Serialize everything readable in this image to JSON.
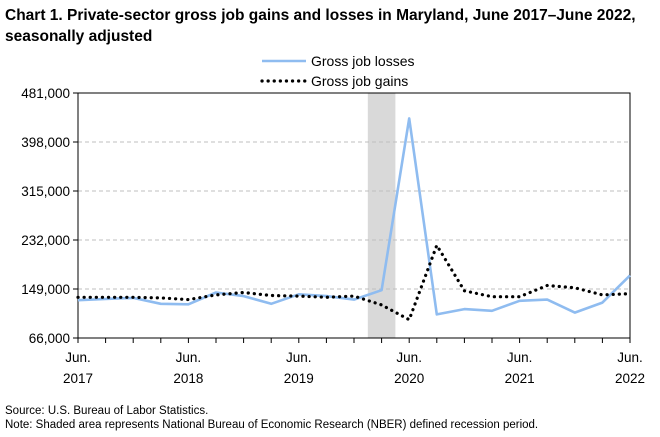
{
  "chart_data": {
    "type": "line",
    "title": "Chart 1. Private-sector gross job gains and losses in Maryland, June 2017–June 2022, seasonally adjusted",
    "xlabel": "",
    "ylabel": "",
    "ylim": [
      66000,
      481000
    ],
    "yticks": [
      "481,000",
      "398,000",
      "315,000",
      "232,000",
      "149,000",
      "66,000"
    ],
    "ytick_values": [
      481000,
      398000,
      315000,
      232000,
      149000,
      66000
    ],
    "xticks": [
      {
        "index": 0,
        "month": "Jun.",
        "year": "2017"
      },
      {
        "index": 4,
        "month": "Jun.",
        "year": "2018"
      },
      {
        "index": 8,
        "month": "Jun.",
        "year": "2019"
      },
      {
        "index": 12,
        "month": "Jun.",
        "year": "2020"
      },
      {
        "index": 16,
        "month": "Jun.",
        "year": "2021"
      },
      {
        "index": 20,
        "month": "Jun.",
        "year": "2022"
      }
    ],
    "categories": [
      "Jun 2017",
      "Sep 2017",
      "Dec 2017",
      "Mar 2018",
      "Jun 2018",
      "Sep 2018",
      "Dec 2018",
      "Mar 2019",
      "Jun 2019",
      "Sep 2019",
      "Dec 2019",
      "Mar 2020",
      "Jun 2020",
      "Sep 2020",
      "Dec 2020",
      "Mar 2021",
      "Jun 2021",
      "Sep 2021",
      "Dec 2021",
      "Mar 2022",
      "Jun 2022"
    ],
    "recession": {
      "start_index": 10.5,
      "end_index": 11.5
    },
    "legend": "top-right",
    "grid": true,
    "series": [
      {
        "name": "Gross job losses",
        "color": "#8fbcf0",
        "style": "solid",
        "values": [
          130000,
          132000,
          134000,
          124000,
          123000,
          143000,
          137000,
          124000,
          140000,
          137000,
          131000,
          147000,
          438000,
          106000,
          115000,
          112000,
          129000,
          131000,
          109000,
          126000,
          172000
        ]
      },
      {
        "name": "Gross job gains",
        "color": "#000000",
        "style": "dotted",
        "values": [
          135000,
          135000,
          135000,
          134000,
          131000,
          139000,
          143000,
          138000,
          137000,
          135000,
          137000,
          122000,
          97000,
          223000,
          146000,
          136000,
          136000,
          155000,
          151000,
          139000,
          141000
        ]
      }
    ]
  },
  "footnotes": {
    "source": "Source: U.S. Bureau of Labor Statistics.",
    "note": "Note: Shaded area represents National Bureau of Economic Research (NBER) defined  recession period."
  }
}
